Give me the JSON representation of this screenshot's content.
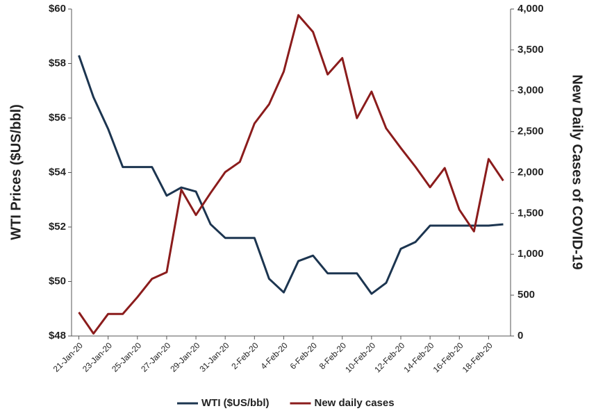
{
  "chart_data": {
    "type": "line",
    "categories": [
      "21-Jan-20",
      null,
      "23-Jan-20",
      null,
      "25-Jan-20",
      null,
      "27-Jan-20",
      null,
      "29-Jan-20",
      null,
      "31-Jan-20",
      null,
      "2-Feb-20",
      null,
      "4-Feb-20",
      null,
      "6-Feb-20",
      null,
      "8-Feb-20",
      null,
      "10-Feb-20",
      null,
      "12-Feb-20",
      null,
      "14-Feb-20",
      null,
      "16-Feb-20",
      null,
      "18-Feb-20",
      null
    ],
    "series": [
      {
        "name": "WTI ($US/bbl)",
        "color": "#1c3550",
        "axis": "y",
        "values": [
          58.3,
          56.76,
          55.6,
          54.2,
          54.2,
          54.2,
          53.15,
          53.45,
          53.3,
          52.1,
          51.6,
          51.6,
          51.6,
          50.1,
          49.6,
          50.75,
          50.95,
          50.3,
          50.3,
          50.3,
          49.55,
          49.95,
          51.2,
          51.45,
          52.05,
          52.05,
          52.05,
          52.05,
          52.05,
          52.1
        ]
      },
      {
        "name": "New daily cases",
        "color": "#8b1c1c",
        "axis": "y2",
        "values": [
          290,
          30,
          270,
          270,
          475,
          700,
          780,
          1790,
          1480,
          1750,
          2005,
          2130,
          2600,
          2835,
          3235,
          3925,
          3720,
          3200,
          3400,
          2665,
          2990,
          2540,
          2300,
          2070,
          1820,
          2055,
          1545,
          1280,
          2165,
          1900
        ]
      }
    ],
    "ylabel": "WTI Prices ($US/bbl)",
    "y2label": "New Daily Cases of COVID-19",
    "ylim": [
      48,
      60
    ],
    "yticks": [
      {
        "value": 48,
        "label": "$48"
      },
      {
        "value": 50,
        "label": "$50"
      },
      {
        "value": 52,
        "label": "$52"
      },
      {
        "value": 54,
        "label": "$54"
      },
      {
        "value": 56,
        "label": "$56"
      },
      {
        "value": 58,
        "label": "$58"
      },
      {
        "value": 60,
        "label": "$60"
      }
    ],
    "y2lim": [
      0,
      4000
    ],
    "y2ticks": [
      0,
      500,
      {
        "value": 1000,
        "label": "1,000"
      },
      {
        "value": 1500,
        "label": "1,500"
      },
      {
        "value": 2000,
        "label": "2,000"
      },
      {
        "value": 2500,
        "label": "2,500"
      },
      {
        "value": 3000,
        "label": "3,000"
      },
      {
        "value": 3500,
        "label": "3,500"
      },
      {
        "value": 4000,
        "label": "4,000"
      }
    ],
    "grid": false,
    "legend": "bottom"
  }
}
